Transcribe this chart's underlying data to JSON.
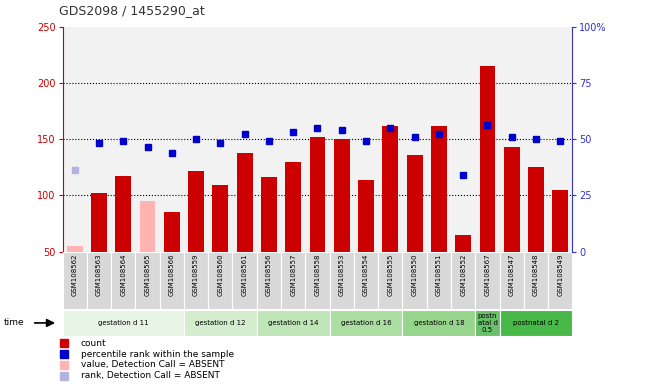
{
  "title": "GDS2098 / 1455290_at",
  "samples": [
    "GSM108562",
    "GSM108563",
    "GSM108564",
    "GSM108565",
    "GSM108566",
    "GSM108559",
    "GSM108560",
    "GSM108561",
    "GSM108556",
    "GSM108557",
    "GSM108558",
    "GSM108553",
    "GSM108554",
    "GSM108555",
    "GSM108550",
    "GSM108551",
    "GSM108552",
    "GSM108567",
    "GSM108547",
    "GSM108548",
    "GSM108549"
  ],
  "bar_values": [
    55,
    102,
    117,
    95,
    85,
    122,
    109,
    138,
    116,
    130,
    152,
    150,
    114,
    162,
    136,
    162,
    65,
    215,
    143,
    125,
    105
  ],
  "absent_bar": [
    true,
    false,
    false,
    true,
    false,
    false,
    false,
    false,
    false,
    false,
    false,
    false,
    false,
    false,
    false,
    false,
    false,
    false,
    false,
    false,
    false
  ],
  "percentile_values": [
    123,
    147,
    148,
    143,
    138,
    150,
    147,
    155,
    148,
    156,
    160,
    158,
    148,
    160,
    152,
    155,
    118,
    163,
    152,
    150,
    148
  ],
  "absent_rank": [
    true,
    false,
    false,
    false,
    false,
    false,
    false,
    false,
    false,
    false,
    false,
    false,
    false,
    false,
    false,
    false,
    false,
    false,
    false,
    false,
    false
  ],
  "groups": [
    {
      "label": "gestation d 11",
      "start": 0,
      "end": 5,
      "color": "#e8f5e4"
    },
    {
      "label": "gestation d 12",
      "start": 5,
      "end": 8,
      "color": "#d4edce"
    },
    {
      "label": "gestation d 14",
      "start": 8,
      "end": 11,
      "color": "#c0e5b8"
    },
    {
      "label": "gestation d 16",
      "start": 11,
      "end": 14,
      "color": "#acdda2"
    },
    {
      "label": "gestation d 18",
      "start": 14,
      "end": 17,
      "color": "#98d58c"
    },
    {
      "label": "postn\natal d\n0.5",
      "start": 17,
      "end": 18,
      "color": "#6abf6a"
    },
    {
      "label": "postnatal d 2",
      "start": 18,
      "end": 21,
      "color": "#48b848"
    }
  ],
  "ylim_left": [
    50,
    250
  ],
  "ylim_right": [
    0,
    100
  ],
  "yticks_left": [
    50,
    100,
    150,
    200,
    250
  ],
  "yticks_right": [
    0,
    25,
    50,
    75,
    100
  ],
  "bar_color_normal": "#cc0000",
  "bar_color_absent": "#ffb3b3",
  "rank_color_normal": "#0000cc",
  "rank_color_absent": "#b3b3dd",
  "plot_bg_color": "#f2f2f2",
  "left_axis_color": "#cc0000",
  "right_axis_color": "#3333cc",
  "legend_items": [
    {
      "color": "#cc0000",
      "label": "count"
    },
    {
      "color": "#0000cc",
      "label": "percentile rank within the sample"
    },
    {
      "color": "#ffb3b3",
      "label": "value, Detection Call = ABSENT"
    },
    {
      "color": "#b3b3dd",
      "label": "rank, Detection Call = ABSENT"
    }
  ]
}
